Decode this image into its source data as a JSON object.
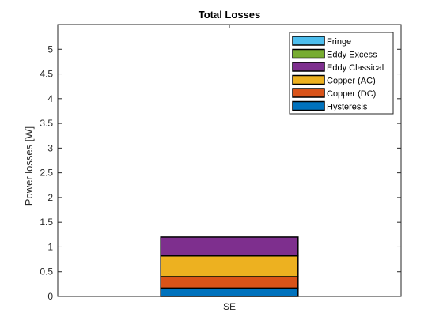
{
  "chart_data": {
    "type": "bar",
    "stacked": true,
    "title": "Total Losses",
    "xlabel": "",
    "ylabel": "Power losses [W]",
    "categories": [
      "SE"
    ],
    "ylim": [
      0,
      5.5
    ],
    "yticks": [
      0,
      0.5,
      1,
      1.5,
      2,
      2.5,
      3,
      3.5,
      4,
      4.5,
      5
    ],
    "ytick_labels": [
      "0",
      "0.5",
      "1",
      "1.5",
      "2",
      "2.5",
      "3",
      "3.5",
      "4",
      "4.5",
      "5"
    ],
    "grid": false,
    "legend_position": "top-right",
    "series": [
      {
        "name": "Hysteresis",
        "values": [
          0.17
        ],
        "color": "#0072BD"
      },
      {
        "name": "Copper (DC)",
        "values": [
          0.23
        ],
        "color": "#D95319"
      },
      {
        "name": "Copper (AC)",
        "values": [
          0.42
        ],
        "color": "#EDB120"
      },
      {
        "name": "Eddy Classical",
        "values": [
          0.38
        ],
        "color": "#7E2F8E"
      },
      {
        "name": "Eddy Excess",
        "values": [
          0.0
        ],
        "color": "#77AC30"
      },
      {
        "name": "Fringe",
        "values": [
          0.0
        ],
        "color": "#4DBEEE"
      }
    ]
  }
}
